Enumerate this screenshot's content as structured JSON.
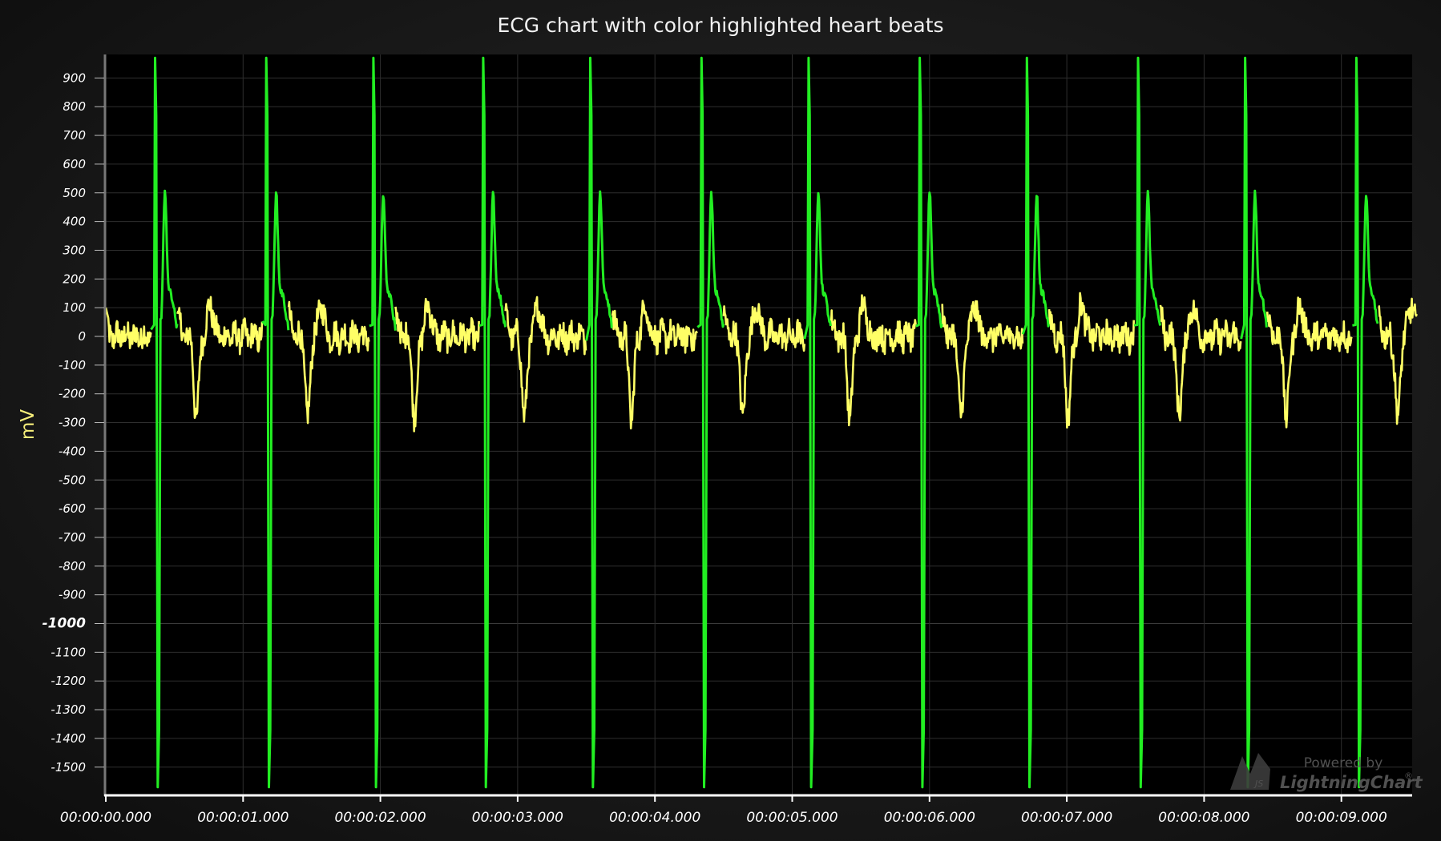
{
  "chart": {
    "title": "ECG chart with color highlighted heart beats",
    "y_axis_title": "mV"
  },
  "watermark": {
    "line1": "Powered by",
    "line2": "LightningChart",
    "mark": "®",
    "badge": "JS"
  },
  "colors": {
    "signal": "#ffff66",
    "beat_highlight": "#22ee22",
    "background": "#000000",
    "grid": "#2e2e2e",
    "axis_line": "#ffffff"
  },
  "chart_data": {
    "type": "line",
    "title": "ECG chart with color highlighted heart beats",
    "xlabel": "",
    "ylabel": "mV",
    "x_unit": "seconds",
    "xlim": [
      0,
      9.55
    ],
    "ylim": [
      -1600,
      980
    ],
    "grid": true,
    "legend": "none",
    "y_ticks": [
      900,
      800,
      700,
      600,
      500,
      400,
      300,
      200,
      100,
      0,
      -100,
      -200,
      -300,
      -400,
      -500,
      -600,
      -700,
      -800,
      -900,
      -1000,
      -1100,
      -1200,
      -1300,
      -1400,
      -1500
    ],
    "y_tick_labels": [
      "900",
      "800",
      "700",
      "600",
      "500",
      "400",
      "300",
      "200",
      "100",
      "0",
      "-100",
      "-200",
      "-300",
      "-400",
      "-500",
      "-600",
      "-700",
      "-800",
      "-900",
      "-1000",
      "-1100",
      "-1200",
      "-1300",
      "-1400",
      "-1500"
    ],
    "x_ticks": [
      0,
      1,
      2,
      3,
      4,
      5,
      6,
      7,
      8,
      9
    ],
    "x_tick_labels": [
      "00:00:00.000",
      "00:00:01.000",
      "00:00:02.000",
      "00:00:03.000",
      "00:00:04.000",
      "00:00:05.000",
      "00:00:06.000",
      "00:00:07.000",
      "00:00:08.000",
      "00:00:09.000"
    ],
    "series": [
      {
        "name": "",
        "color": "#ffff66",
        "highlight_color": "#22ee22",
        "beat_times": [
          0.36,
          1.17,
          1.95,
          2.75,
          3.53,
          4.34,
          5.12,
          5.93,
          6.71,
          7.52,
          8.3,
          9.11
        ],
        "r_peak": 970,
        "s_trough": -1570,
        "t_wave_peak": 440,
        "t_wave_delay": 0.08,
        "baseline_range": [
          -100,
          150
        ],
        "secondary_trough": -330,
        "sample_points": [
          [
            0.0,
            100
          ],
          [
            0.1,
            30
          ],
          [
            0.2,
            20
          ],
          [
            0.3,
            -50
          ],
          [
            0.33,
            60
          ],
          [
            0.36,
            970
          ],
          [
            0.38,
            -1570
          ],
          [
            0.41,
            20
          ],
          [
            0.44,
            440
          ],
          [
            0.5,
            160
          ],
          [
            0.56,
            0
          ],
          [
            0.62,
            -200
          ],
          [
            0.66,
            -300
          ],
          [
            0.72,
            0
          ],
          [
            0.76,
            130
          ],
          [
            0.82,
            80
          ],
          [
            0.9,
            50
          ],
          [
            1.0,
            30
          ],
          [
            1.1,
            -50
          ],
          [
            1.17,
            970
          ]
        ]
      }
    ]
  }
}
